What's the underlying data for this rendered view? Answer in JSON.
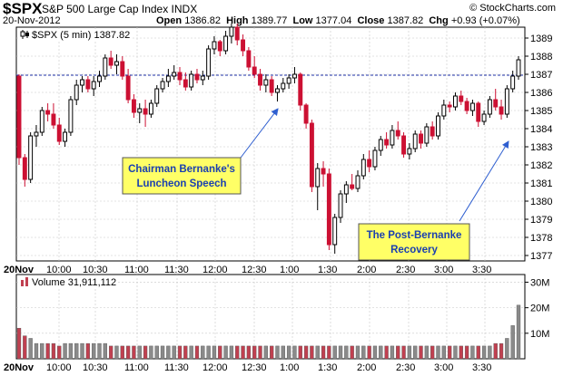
{
  "header": {
    "symbol": "$SPX",
    "index_name": "S&P 500 Large Cap Index  INDX",
    "date": "20-Nov-2012",
    "ohlc": {
      "open_label": "Open",
      "open": "1386.82",
      "high_label": "High",
      "high": "1389.77",
      "low_label": "Low",
      "low": "1377.04",
      "close_label": "Close",
      "close": "1387.82",
      "chg_label": "Chg",
      "chg": "+0.93 (+0.07%)"
    },
    "watermark": "© StockCharts.com",
    "series_legend": "$SPX (5 min) 1387.82",
    "volume_legend": "Volume 31,911,112"
  },
  "colors": {
    "up": "#000000",
    "down": "#cc1033",
    "volume_up": "#8a8a8a",
    "volume_down": "#c04050",
    "reference_line": "#2233aa",
    "annotation_fill": "#ffff66",
    "annotation_text": "#1a3fb0",
    "arrow": "#2f5fd0",
    "grid": "#c8c8c8"
  },
  "chart_data": [
    {
      "type": "candlestick",
      "series_name": "$SPX (5 min)",
      "y_ticks": [
        "1389",
        "1388",
        "1387",
        "1386",
        "1385",
        "1384",
        "1383",
        "1382",
        "1381",
        "1380",
        "1379",
        "1378",
        "1377"
      ],
      "ylim": [
        1376.7,
        1389.6
      ],
      "x_ticks": [
        "20Nov",
        "10:00",
        "10:30",
        "11:00",
        "11:30",
        "12:00",
        "12:30",
        "1:00",
        "1:30",
        "2:00",
        "2:30",
        "3:00",
        "3:30"
      ],
      "reference_line": 1386.95,
      "grid": true,
      "candles": [
        {
          "o": 1386.9,
          "h": 1387.0,
          "l": 1382.0,
          "c": 1382.4
        },
        {
          "o": 1382.4,
          "h": 1382.6,
          "l": 1380.8,
          "c": 1381.2
        },
        {
          "o": 1381.2,
          "h": 1383.8,
          "l": 1381.0,
          "c": 1383.6
        },
        {
          "o": 1383.6,
          "h": 1384.2,
          "l": 1383.0,
          "c": 1383.8
        },
        {
          "o": 1383.8,
          "h": 1385.2,
          "l": 1383.6,
          "c": 1385.0
        },
        {
          "o": 1385.0,
          "h": 1385.4,
          "l": 1384.4,
          "c": 1384.8
        },
        {
          "o": 1384.8,
          "h": 1385.4,
          "l": 1384.0,
          "c": 1384.2
        },
        {
          "o": 1384.2,
          "h": 1384.6,
          "l": 1383.1,
          "c": 1383.3
        },
        {
          "o": 1383.3,
          "h": 1384.0,
          "l": 1383.0,
          "c": 1383.8
        },
        {
          "o": 1383.8,
          "h": 1385.8,
          "l": 1383.6,
          "c": 1385.6
        },
        {
          "o": 1385.6,
          "h": 1386.7,
          "l": 1385.3,
          "c": 1386.4
        },
        {
          "o": 1386.4,
          "h": 1386.9,
          "l": 1386.0,
          "c": 1386.7
        },
        {
          "o": 1386.7,
          "h": 1386.9,
          "l": 1386.0,
          "c": 1386.2
        },
        {
          "o": 1386.2,
          "h": 1386.9,
          "l": 1385.8,
          "c": 1386.6
        },
        {
          "o": 1386.6,
          "h": 1387.2,
          "l": 1386.3,
          "c": 1386.9
        },
        {
          "o": 1386.9,
          "h": 1388.1,
          "l": 1386.7,
          "c": 1387.9
        },
        {
          "o": 1387.9,
          "h": 1388.3,
          "l": 1387.3,
          "c": 1387.5
        },
        {
          "o": 1387.5,
          "h": 1388.1,
          "l": 1387.0,
          "c": 1387.7
        },
        {
          "o": 1387.7,
          "h": 1388.0,
          "l": 1386.7,
          "c": 1386.9
        },
        {
          "o": 1386.9,
          "h": 1387.3,
          "l": 1385.4,
          "c": 1385.6
        },
        {
          "o": 1385.6,
          "h": 1385.9,
          "l": 1384.6,
          "c": 1384.9
        },
        {
          "o": 1384.9,
          "h": 1385.4,
          "l": 1384.3,
          "c": 1385.1
        },
        {
          "o": 1385.1,
          "h": 1385.6,
          "l": 1384.1,
          "c": 1384.8
        },
        {
          "o": 1384.8,
          "h": 1385.6,
          "l": 1384.6,
          "c": 1385.4
        },
        {
          "o": 1385.4,
          "h": 1386.4,
          "l": 1385.2,
          "c": 1386.2
        },
        {
          "o": 1386.2,
          "h": 1386.8,
          "l": 1386.0,
          "c": 1386.6
        },
        {
          "o": 1386.6,
          "h": 1387.3,
          "l": 1386.3,
          "c": 1386.9
        },
        {
          "o": 1386.9,
          "h": 1387.5,
          "l": 1386.7,
          "c": 1387.1
        },
        {
          "o": 1387.1,
          "h": 1387.4,
          "l": 1386.4,
          "c": 1386.7
        },
        {
          "o": 1386.7,
          "h": 1387.1,
          "l": 1386.1,
          "c": 1386.3
        },
        {
          "o": 1386.3,
          "h": 1387.2,
          "l": 1386.1,
          "c": 1387.0
        },
        {
          "o": 1387.0,
          "h": 1387.3,
          "l": 1386.5,
          "c": 1386.7
        },
        {
          "o": 1386.7,
          "h": 1387.2,
          "l": 1386.4,
          "c": 1386.9
        },
        {
          "o": 1386.9,
          "h": 1388.6,
          "l": 1386.7,
          "c": 1388.4
        },
        {
          "o": 1388.4,
          "h": 1389.1,
          "l": 1388.1,
          "c": 1388.8
        },
        {
          "o": 1388.8,
          "h": 1388.9,
          "l": 1388.0,
          "c": 1388.3
        },
        {
          "o": 1388.3,
          "h": 1389.4,
          "l": 1388.1,
          "c": 1389.1
        },
        {
          "o": 1389.1,
          "h": 1389.8,
          "l": 1388.7,
          "c": 1389.6
        },
        {
          "o": 1389.6,
          "h": 1389.8,
          "l": 1388.6,
          "c": 1388.9
        },
        {
          "o": 1388.9,
          "h": 1389.2,
          "l": 1388.0,
          "c": 1388.3
        },
        {
          "o": 1388.3,
          "h": 1388.5,
          "l": 1387.2,
          "c": 1387.4
        },
        {
          "o": 1387.4,
          "h": 1388.0,
          "l": 1386.8,
          "c": 1387.0
        },
        {
          "o": 1387.0,
          "h": 1387.3,
          "l": 1386.1,
          "c": 1386.4
        },
        {
          "o": 1386.4,
          "h": 1387.0,
          "l": 1386.0,
          "c": 1386.7
        },
        {
          "o": 1386.7,
          "h": 1386.9,
          "l": 1385.8,
          "c": 1386.0
        },
        {
          "o": 1386.0,
          "h": 1386.4,
          "l": 1385.5,
          "c": 1386.2
        },
        {
          "o": 1386.2,
          "h": 1386.8,
          "l": 1386.0,
          "c": 1386.5
        },
        {
          "o": 1386.5,
          "h": 1387.0,
          "l": 1386.2,
          "c": 1386.8
        },
        {
          "o": 1386.8,
          "h": 1387.4,
          "l": 1386.5,
          "c": 1387.0
        },
        {
          "o": 1387.0,
          "h": 1387.1,
          "l": 1385.0,
          "c": 1385.3
        },
        {
          "o": 1385.3,
          "h": 1385.4,
          "l": 1384.0,
          "c": 1384.3
        },
        {
          "o": 1384.3,
          "h": 1384.5,
          "l": 1380.5,
          "c": 1380.8
        },
        {
          "o": 1380.8,
          "h": 1382.1,
          "l": 1379.5,
          "c": 1381.8
        },
        {
          "o": 1381.8,
          "h": 1382.2,
          "l": 1380.8,
          "c": 1381.5
        },
        {
          "o": 1381.5,
          "h": 1381.8,
          "l": 1377.3,
          "c": 1377.6
        },
        {
          "o": 1377.6,
          "h": 1379.3,
          "l": 1377.1,
          "c": 1379.1
        },
        {
          "o": 1379.1,
          "h": 1380.6,
          "l": 1378.8,
          "c": 1380.4
        },
        {
          "o": 1380.4,
          "h": 1381.1,
          "l": 1379.9,
          "c": 1380.9
        },
        {
          "o": 1380.9,
          "h": 1381.5,
          "l": 1380.6,
          "c": 1380.7
        },
        {
          "o": 1380.7,
          "h": 1381.7,
          "l": 1380.5,
          "c": 1381.4
        },
        {
          "o": 1381.4,
          "h": 1382.6,
          "l": 1381.2,
          "c": 1382.3
        },
        {
          "o": 1382.3,
          "h": 1382.8,
          "l": 1381.6,
          "c": 1381.9
        },
        {
          "o": 1381.9,
          "h": 1383.0,
          "l": 1381.7,
          "c": 1382.8
        },
        {
          "o": 1382.8,
          "h": 1383.6,
          "l": 1382.5,
          "c": 1383.4
        },
        {
          "o": 1383.4,
          "h": 1383.8,
          "l": 1382.9,
          "c": 1383.1
        },
        {
          "o": 1383.1,
          "h": 1384.2,
          "l": 1382.9,
          "c": 1383.9
        },
        {
          "o": 1383.9,
          "h": 1384.4,
          "l": 1383.4,
          "c": 1383.6
        },
        {
          "o": 1383.6,
          "h": 1383.8,
          "l": 1382.4,
          "c": 1382.6
        },
        {
          "o": 1382.6,
          "h": 1383.2,
          "l": 1382.3,
          "c": 1382.9
        },
        {
          "o": 1382.9,
          "h": 1383.9,
          "l": 1382.7,
          "c": 1383.7
        },
        {
          "o": 1383.7,
          "h": 1383.9,
          "l": 1382.9,
          "c": 1383.2
        },
        {
          "o": 1383.2,
          "h": 1384.3,
          "l": 1383.0,
          "c": 1384.1
        },
        {
          "o": 1384.1,
          "h": 1384.4,
          "l": 1383.4,
          "c": 1383.6
        },
        {
          "o": 1383.6,
          "h": 1384.9,
          "l": 1383.4,
          "c": 1384.7
        },
        {
          "o": 1384.7,
          "h": 1385.6,
          "l": 1384.5,
          "c": 1385.3
        },
        {
          "o": 1385.3,
          "h": 1385.5,
          "l": 1384.9,
          "c": 1385.2
        },
        {
          "o": 1385.2,
          "h": 1386.0,
          "l": 1385.0,
          "c": 1385.8
        },
        {
          "o": 1385.8,
          "h": 1386.1,
          "l": 1385.3,
          "c": 1385.5
        },
        {
          "o": 1385.5,
          "h": 1385.7,
          "l": 1384.8,
          "c": 1385.0
        },
        {
          "o": 1385.0,
          "h": 1385.6,
          "l": 1384.7,
          "c": 1385.4
        },
        {
          "o": 1385.4,
          "h": 1385.5,
          "l": 1384.1,
          "c": 1384.4
        },
        {
          "o": 1384.4,
          "h": 1385.0,
          "l": 1384.2,
          "c": 1384.8
        },
        {
          "o": 1384.8,
          "h": 1385.8,
          "l": 1384.6,
          "c": 1385.6
        },
        {
          "o": 1385.6,
          "h": 1386.2,
          "l": 1385.0,
          "c": 1385.2
        },
        {
          "o": 1385.2,
          "h": 1385.6,
          "l": 1384.5,
          "c": 1384.8
        },
        {
          "o": 1384.8,
          "h": 1386.4,
          "l": 1384.6,
          "c": 1386.2
        },
        {
          "o": 1386.2,
          "h": 1387.2,
          "l": 1386.0,
          "c": 1386.9
        },
        {
          "o": 1386.9,
          "h": 1388.0,
          "l": 1386.7,
          "c": 1387.8
        }
      ]
    },
    {
      "type": "bar",
      "series_name": "Volume",
      "y_ticks": [
        "30M",
        "20M",
        "10M"
      ],
      "ylim": [
        0,
        33
      ],
      "values": [
        12,
        9,
        8,
        6,
        6,
        6,
        6,
        5,
        6,
        6,
        6,
        6,
        6,
        6,
        6,
        6,
        5,
        5,
        5,
        5,
        5,
        5,
        5,
        5,
        5,
        5,
        5,
        5,
        5,
        5,
        5,
        5,
        5,
        5,
        5,
        5,
        5,
        5,
        5,
        5,
        5,
        5,
        5,
        5,
        5,
        5,
        5,
        5,
        5,
        5,
        5,
        5,
        5,
        5,
        5,
        5,
        5,
        5,
        5,
        5,
        5,
        5,
        5,
        5,
        5,
        5,
        5,
        5,
        5,
        5,
        5,
        5,
        5,
        5,
        5,
        5,
        5,
        5,
        5,
        5,
        5,
        5,
        5,
        6,
        6,
        8,
        13,
        21
      ],
      "up": [
        false,
        false,
        true,
        true,
        true,
        false,
        false,
        false,
        true,
        true,
        true,
        true,
        false,
        true,
        true,
        true,
        false,
        true,
        false,
        false,
        false,
        true,
        false,
        true,
        true,
        true,
        true,
        true,
        false,
        false,
        true,
        false,
        true,
        true,
        true,
        false,
        true,
        true,
        false,
        false,
        false,
        false,
        false,
        true,
        false,
        true,
        true,
        true,
        true,
        false,
        false,
        false,
        true,
        false,
        false,
        true,
        true,
        true,
        false,
        true,
        true,
        false,
        true,
        true,
        false,
        true,
        false,
        false,
        true,
        true,
        false,
        true,
        false,
        true,
        true,
        false,
        true,
        false,
        false,
        true,
        false,
        true,
        true,
        false,
        false,
        true,
        true,
        true
      ]
    }
  ],
  "annotations": [
    {
      "line1": "Chairman Bernanke's",
      "line2": "Luncheon Speech"
    },
    {
      "line1": "The Post-Bernanke",
      "line2": "Recovery"
    }
  ]
}
